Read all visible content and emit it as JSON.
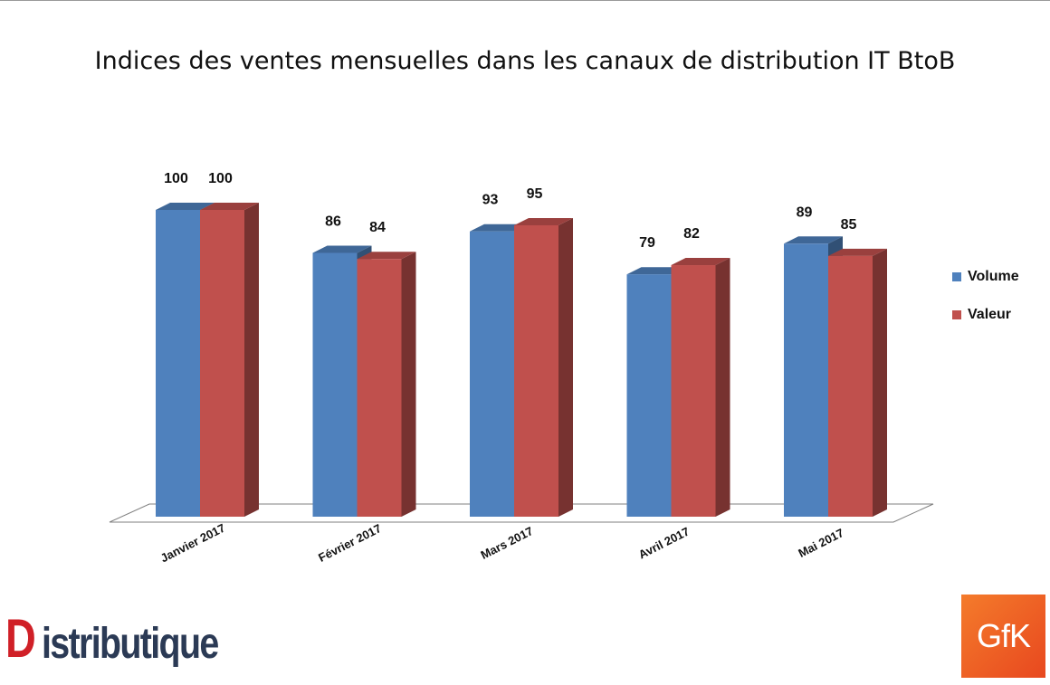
{
  "chart_data": {
    "type": "bar",
    "title": "Indices des ventes mensuelles dans les canaux de distribution IT BtoB",
    "categories": [
      "Janvier 2017",
      "Février 2017",
      "Mars 2017",
      "Avril 2017",
      "Mai 2017"
    ],
    "series": [
      {
        "name": "Volume",
        "values": [
          100,
          86,
          93,
          79,
          89
        ],
        "color": "#4f81bd"
      },
      {
        "name": "Valeur",
        "values": [
          100,
          84,
          95,
          82,
          85
        ],
        "color": "#c0504d"
      }
    ],
    "xlabel": "",
    "ylabel": "",
    "ylim": [
      0,
      100
    ],
    "grid": false,
    "legend_position": "right",
    "style": "3d-clustered-column"
  },
  "logos": {
    "distributique": {
      "first_letter": "D",
      "rest": "istributique"
    },
    "gfk": {
      "text": "GfK",
      "color": "#f0642a"
    }
  }
}
